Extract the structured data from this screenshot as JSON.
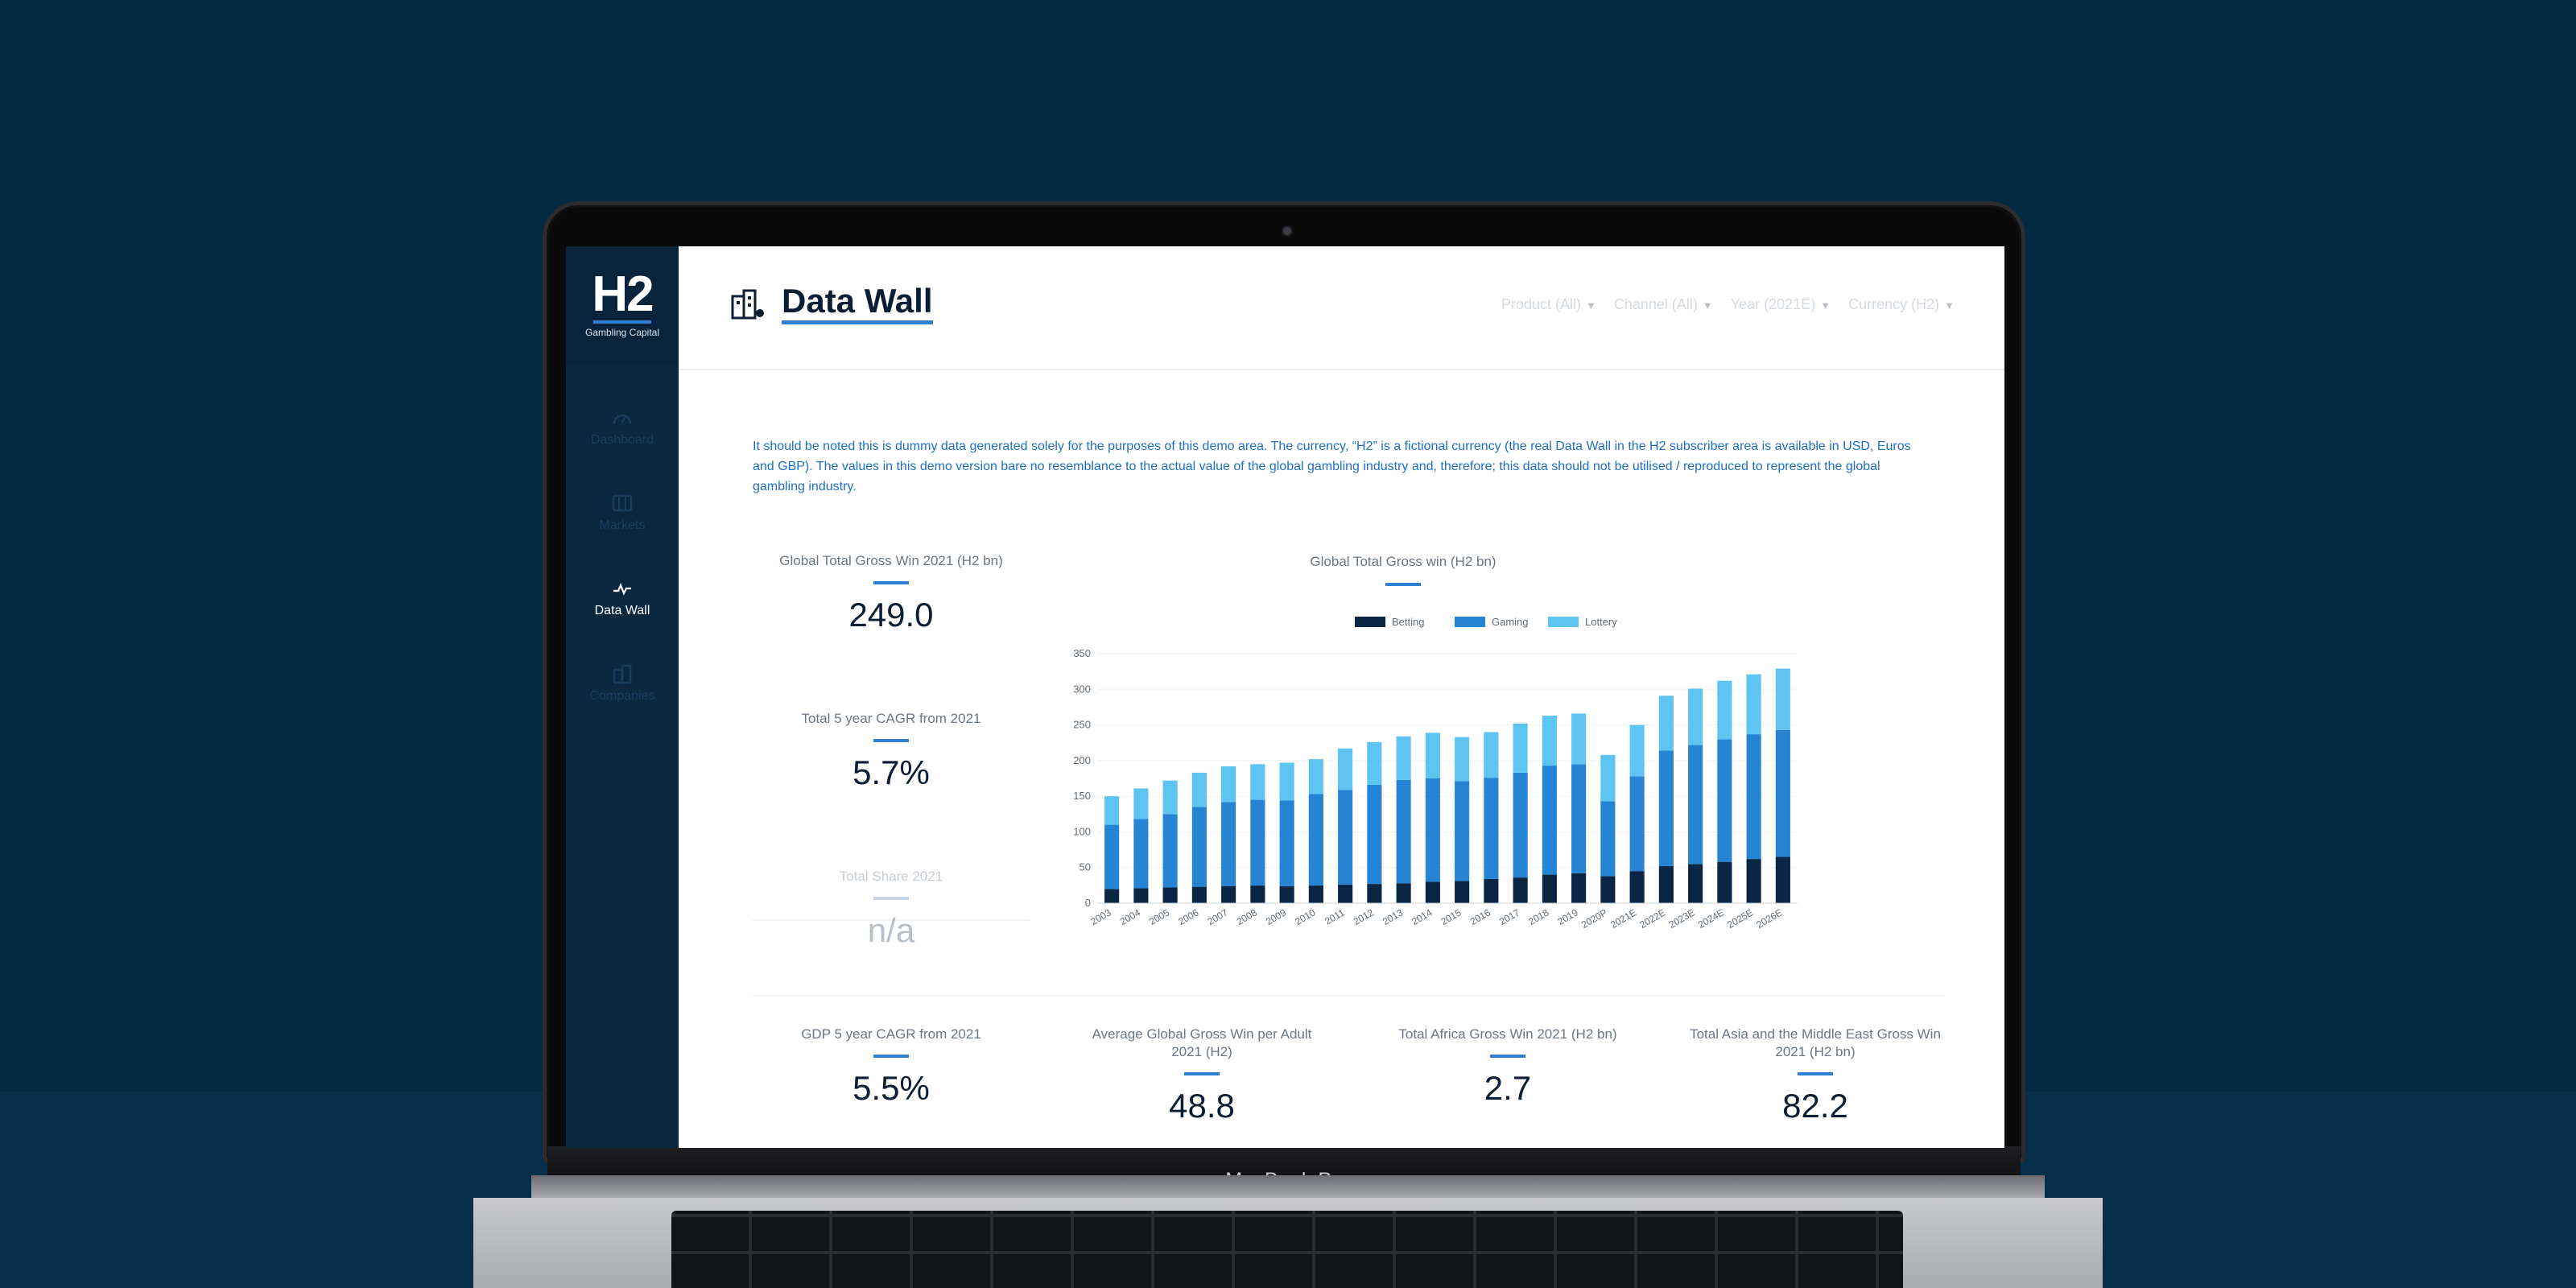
{
  "app": {
    "logo_text": "H2",
    "logo_subtitle": "Gambling Capital"
  },
  "sidebar": {
    "items": [
      {
        "label": "Dashboard",
        "icon": "gauge-icon",
        "active": false
      },
      {
        "label": "Markets",
        "icon": "map-icon",
        "active": false
      },
      {
        "label": "Data Wall",
        "icon": "pulse-icon",
        "active": true
      },
      {
        "label": "Companies",
        "icon": "buildings-icon",
        "active": false
      }
    ]
  },
  "header": {
    "title": "Data Wall",
    "title_icon": "buildings-icon",
    "filters": [
      "Product (All)",
      "Channel (All)",
      "Year (2021E)",
      "Currency (H2)"
    ]
  },
  "disclaimer": "It should be noted this is dummy data generated solely for the purposes of this demo area. The currency, “H2” is a fictional currency (the real Data Wall in the H2 subscriber area is available in USD, Euros and GBP). The values in this demo version bare no resemblance to the actual value of the global gambling industry and, therefore; this data should not be utilised / reproduced to represent the global gambling industry.",
  "kpis": {
    "gross_win": {
      "label": "Global Total Gross Win 2021 (H2 bn)",
      "value": "249.0"
    },
    "cagr": {
      "label": "Total 5 year CAGR from 2021",
      "value": "5.7%"
    },
    "share": {
      "label": "Total Share 2021",
      "value": "n/a"
    },
    "gdp": {
      "label": "GDP 5 year CAGR from 2021",
      "value": "5.5%"
    },
    "per_adult": {
      "label": "Average Global Gross Win per Adult 2021 (H2)",
      "value": "48.8"
    },
    "africa": {
      "label": "Total Africa Gross Win 2021 (H2 bn)",
      "value": "2.7"
    },
    "asia": {
      "label": "Total Asia and the Middle East Gross Win 2021 (H2 bn)",
      "value": "82.2"
    }
  },
  "colors": {
    "accent": "#2f7fd4",
    "betting": "#0b2545",
    "gaming": "#2585d4",
    "lottery": "#5ec4f2"
  },
  "chart_data": {
    "type": "bar",
    "stacked": true,
    "title": "Global Total Gross win (H2 bn)",
    "categories": [
      "2003",
      "2004",
      "2005",
      "2006",
      "2007",
      "2008",
      "2009",
      "2010",
      "2011",
      "2012",
      "2013",
      "2014",
      "2015",
      "2016",
      "2017",
      "2018",
      "2019",
      "2020P",
      "2021E",
      "2022E",
      "2023E",
      "2024E",
      "2025E",
      "2026E"
    ],
    "series": [
      {
        "name": "Betting",
        "values": [
          20,
          21,
          22,
          23,
          24,
          25,
          24,
          25,
          26,
          27,
          28,
          30,
          31,
          34,
          36,
          40,
          42,
          38,
          45,
          52,
          55,
          58,
          62,
          65
        ]
      },
      {
        "name": "Gaming",
        "values": [
          90,
          97,
          103,
          112,
          118,
          120,
          120,
          128,
          133,
          139,
          145,
          145,
          140,
          142,
          147,
          153,
          153,
          105,
          133,
          162,
          167,
          172,
          175,
          178
        ]
      },
      {
        "name": "Lottery",
        "values": [
          40,
          43,
          47,
          48,
          50,
          50,
          53,
          49,
          58,
          60,
          61,
          64,
          62,
          64,
          69,
          70,
          71,
          65,
          72,
          77,
          79,
          82,
          84,
          86
        ]
      }
    ],
    "ylim": [
      0,
      350
    ],
    "yticks": [
      0,
      50,
      100,
      150,
      200,
      250,
      300,
      350
    ],
    "legend_position": "top",
    "grid": true
  }
}
